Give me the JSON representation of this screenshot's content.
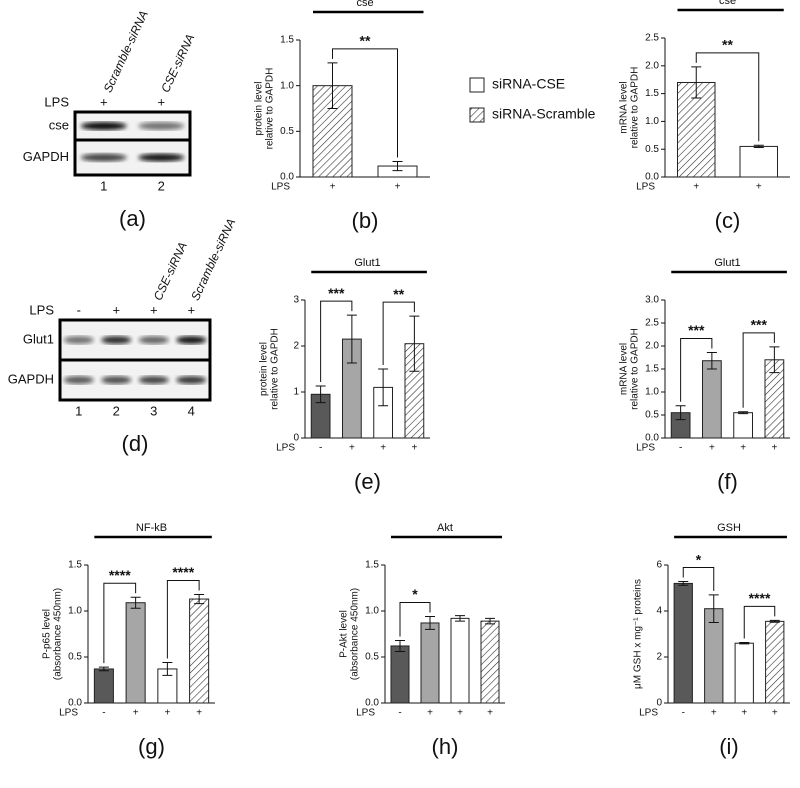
{
  "legend": [
    {
      "name": "siRNA-CSE",
      "color": "#ffffff",
      "hatch": false
    },
    {
      "name": "siRNA-Scramble",
      "color": "#ffffff",
      "hatch": true
    }
  ],
  "blots": [
    {
      "label": "(a)",
      "columns": [
        "Scramble-siRNA",
        "CSE-siRNA"
      ],
      "lps_label": "LPS",
      "lps": [
        "+",
        "+"
      ],
      "rows": [
        "cse",
        "GAPDH"
      ],
      "lanes": [
        "1",
        "2"
      ]
    },
    {
      "label": "(d)",
      "columns": [
        null,
        null,
        "CSE-siRNA",
        "Scramble-siRNA"
      ],
      "lps_label": "LPS",
      "lps": [
        "-",
        "+",
        "+",
        "+"
      ],
      "rows": [
        "Glut1",
        "GAPDH"
      ],
      "lanes": [
        "1",
        "2",
        "3",
        "4"
      ]
    }
  ],
  "chart_data": [
    {
      "type": "bar",
      "label": "(b)",
      "title": "cse",
      "ylabel": [
        "protein level",
        "relative to GAPDH"
      ],
      "xlabel": "LPS",
      "categories": [
        "+",
        "+"
      ],
      "values": [
        1.0,
        0.12
      ],
      "errors": [
        0.25,
        0.05
      ],
      "colors": [
        "#ffffff",
        "#ffffff"
      ],
      "hatch": [
        true,
        false
      ],
      "ylim": [
        0,
        1.5
      ],
      "yticks": [
        {
          "value": 0,
          "label": "0.0"
        },
        0.5,
        {
          "value": 1,
          "label": "1.0"
        },
        1.5
      ],
      "significance": [
        "**"
      ]
    },
    {
      "type": "bar",
      "label": "(c)",
      "title": "cse",
      "ylabel": [
        "mRNA level",
        "relative to GAPDH"
      ],
      "xlabel": "LPS",
      "categories": [
        "+",
        "+"
      ],
      "values": [
        1.7,
        0.55
      ],
      "errors": [
        0.28,
        0.02
      ],
      "colors": [
        "#ffffff",
        "#ffffff"
      ],
      "hatch": [
        true,
        false
      ],
      "ylim": [
        0,
        2.5
      ],
      "yticks": [
        {
          "value": 0,
          "label": "0.0"
        },
        0.5,
        {
          "value": 1,
          "label": "1.0"
        },
        1.5,
        {
          "value": 2,
          "label": "2.0"
        },
        2.5
      ],
      "significance": [
        "**"
      ]
    },
    {
      "type": "bar",
      "label": "(e)",
      "title": "Glut1",
      "ylabel": [
        "protein level",
        "relative to GAPDH"
      ],
      "xlabel": "LPS",
      "categories": [
        "-",
        "+",
        "+",
        "+"
      ],
      "values": [
        0.95,
        2.15,
        1.1,
        2.05
      ],
      "errors": [
        0.18,
        0.52,
        0.4,
        0.6
      ],
      "colors": [
        "#595959",
        "#a6a6a6",
        "#ffffff",
        "#ffffff"
      ],
      "hatch": [
        false,
        false,
        false,
        true
      ],
      "ylim": [
        0,
        3
      ],
      "yticks": [
        0,
        1,
        2,
        3
      ],
      "significance": [
        "***",
        "**"
      ]
    },
    {
      "type": "bar",
      "label": "(f)",
      "title": "Glut1",
      "ylabel": [
        "mRNA level",
        "relative to GAPDH"
      ],
      "xlabel": "LPS",
      "categories": [
        "-",
        "+",
        "+",
        "+"
      ],
      "values": [
        0.55,
        1.68,
        0.55,
        1.7
      ],
      "errors": [
        0.15,
        0.18,
        0.02,
        0.28
      ],
      "colors": [
        "#595959",
        "#a6a6a6",
        "#ffffff",
        "#ffffff"
      ],
      "hatch": [
        false,
        false,
        false,
        true
      ],
      "ylim": [
        0,
        3
      ],
      "yticks": [
        {
          "value": 0,
          "label": "0.0"
        },
        0.5,
        {
          "value": 1,
          "label": "1.0"
        },
        1.5,
        {
          "value": 2,
          "label": "2.0"
        },
        2.5,
        {
          "value": 3,
          "label": "3.0"
        }
      ],
      "significance": [
        "***",
        "***"
      ]
    },
    {
      "type": "bar",
      "label": "(g)",
      "title": "NF-kB",
      "ylabel": [
        "P-p65 level",
        "(absorbance 450nm)"
      ],
      "xlabel": "LPS",
      "categories": [
        "-",
        "+",
        "+",
        "+"
      ],
      "values": [
        0.37,
        1.09,
        0.37,
        1.13
      ],
      "errors": [
        0.02,
        0.06,
        0.07,
        0.05
      ],
      "colors": [
        "#595959",
        "#a6a6a6",
        "#ffffff",
        "#ffffff"
      ],
      "hatch": [
        false,
        false,
        false,
        true
      ],
      "ylim": [
        0,
        1.5
      ],
      "yticks": [
        {
          "value": 0,
          "label": "0.0"
        },
        0.5,
        {
          "value": 1,
          "label": "1.0"
        },
        1.5
      ],
      "significance": [
        "****",
        "****"
      ]
    },
    {
      "type": "bar",
      "label": "(h)",
      "title": "Akt",
      "ylabel": [
        "P-Akt level",
        "(absorbance 450nm)"
      ],
      "xlabel": "LPS",
      "categories": [
        "-",
        "+",
        "+",
        "+"
      ],
      "values": [
        0.62,
        0.87,
        0.92,
        0.89
      ],
      "errors": [
        0.06,
        0.07,
        0.03,
        0.03
      ],
      "colors": [
        "#595959",
        "#a6a6a6",
        "#ffffff",
        "#ffffff"
      ],
      "hatch": [
        false,
        false,
        false,
        true
      ],
      "ylim": [
        0,
        1.5
      ],
      "yticks": [
        {
          "value": 0,
          "label": "0.0"
        },
        0.5,
        {
          "value": 1,
          "label": "1.0"
        },
        1.5
      ],
      "significance": [
        "*"
      ]
    },
    {
      "type": "bar",
      "label": "(i)",
      "title": "GSH",
      "ylabel": [
        "μM GSH x mg⁻¹ proteins"
      ],
      "xlabel": "LPS",
      "categories": [
        "-",
        "+",
        "+",
        "+"
      ],
      "values": [
        5.2,
        4.1,
        2.6,
        3.55
      ],
      "errors": [
        0.08,
        0.6,
        0.03,
        0.04
      ],
      "colors": [
        "#595959",
        "#a6a6a6",
        "#ffffff",
        "#ffffff"
      ],
      "hatch": [
        false,
        false,
        false,
        true
      ],
      "ylim": [
        0,
        6
      ],
      "yticks": [
        0,
        2,
        4,
        6
      ],
      "significance": [
        "*",
        "****"
      ]
    }
  ]
}
